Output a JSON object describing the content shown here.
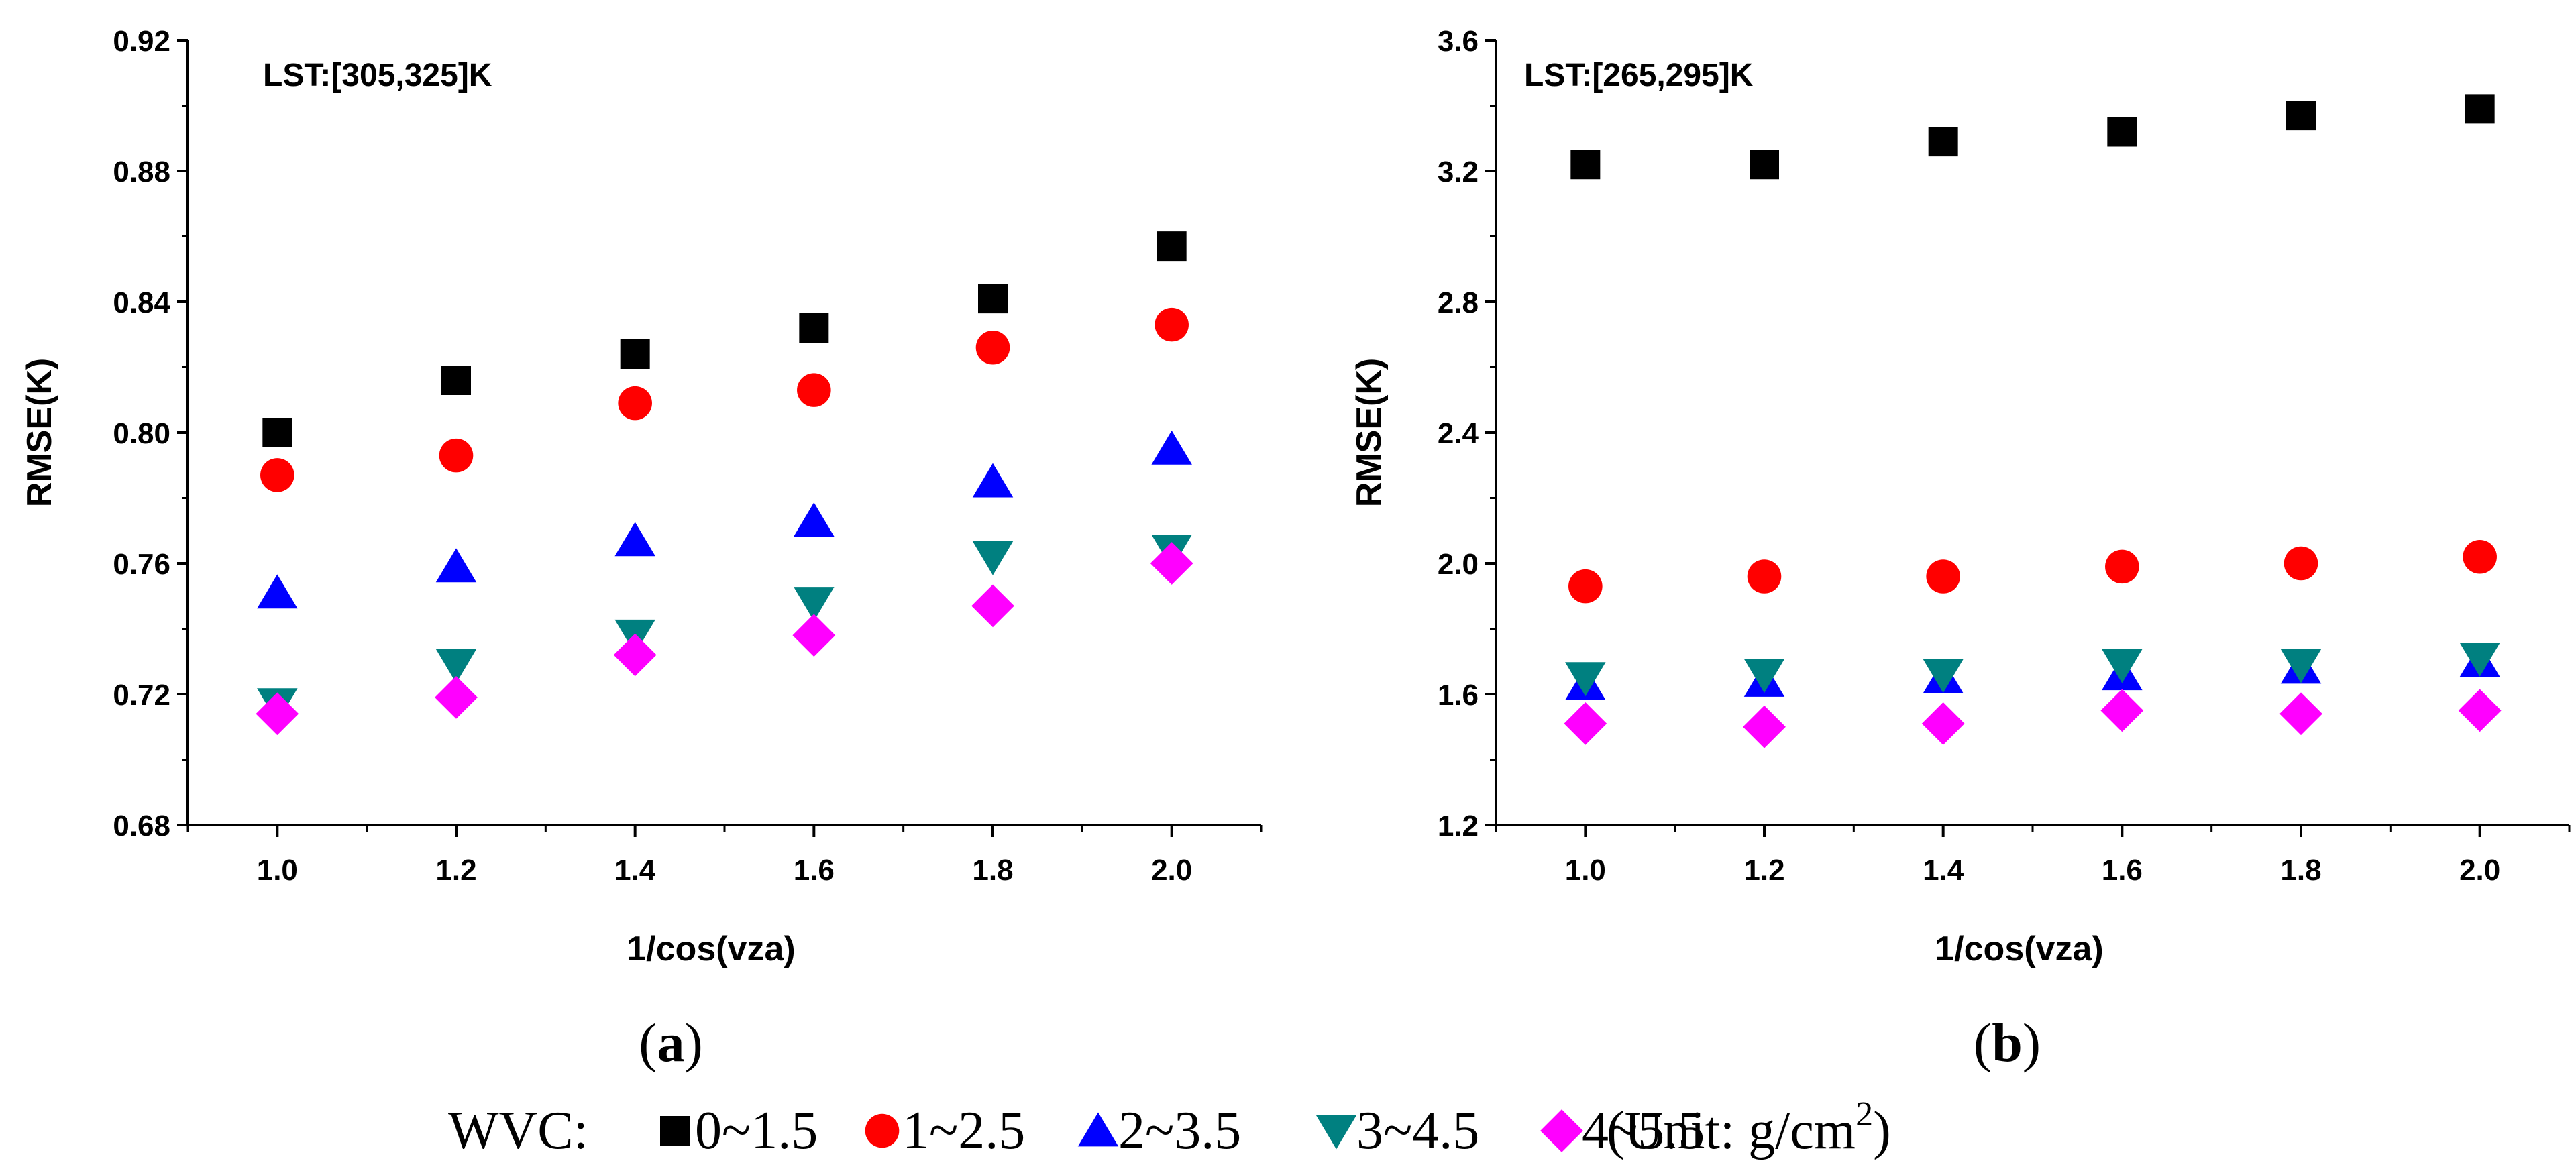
{
  "chart_data": [
    {
      "type": "scatter",
      "panel_label_open": "(",
      "panel_label": "a",
      "panel_label_close": ")",
      "annotation": "LST:[305,325]K",
      "xlabel": "1/cos(vza)",
      "ylabel": "RMSE(K)",
      "xlim": [
        0.9,
        2.1
      ],
      "ylim": [
        0.68,
        0.92
      ],
      "x_ticks": [
        "1.0",
        "1.2",
        "1.4",
        "1.6",
        "1.8",
        "2.0"
      ],
      "y_ticks": [
        "0.68",
        "0.72",
        "0.76",
        "0.80",
        "0.84",
        "0.88",
        "0.92"
      ],
      "x": [
        1.0,
        1.2,
        1.4,
        1.6,
        1.8,
        2.0
      ],
      "grid": false,
      "series": [
        {
          "values": [
            0.8,
            0.816,
            0.824,
            0.832,
            0.841,
            0.857
          ]
        },
        {
          "values": [
            0.787,
            0.793,
            0.809,
            0.813,
            0.826,
            0.833
          ]
        },
        {
          "values": [
            0.751,
            0.759,
            0.767,
            0.773,
            0.785,
            0.795
          ]
        },
        {
          "values": [
            0.717,
            0.729,
            0.738,
            0.748,
            0.762,
            0.764
          ]
        },
        {
          "values": [
            0.714,
            0.719,
            0.732,
            0.738,
            0.747,
            0.76
          ]
        }
      ]
    },
    {
      "type": "scatter",
      "panel_label_open": "(",
      "panel_label": "b",
      "panel_label_close": ")",
      "annotation": "LST:[265,295]K",
      "xlabel": "1/cos(vza)",
      "ylabel": "RMSE(K)",
      "xlim": [
        0.9,
        2.1
      ],
      "ylim": [
        1.2,
        3.6
      ],
      "x_ticks": [
        "1.0",
        "1.2",
        "1.4",
        "1.6",
        "1.8",
        "2.0"
      ],
      "y_ticks": [
        "1.2",
        "1.6",
        "2.0",
        "2.4",
        "2.8",
        "3.2",
        "3.6"
      ],
      "x": [
        1.0,
        1.2,
        1.4,
        1.6,
        1.8,
        2.0
      ],
      "grid": false,
      "series": [
        {
          "values": [
            3.22,
            3.22,
            3.29,
            3.32,
            3.37,
            3.39
          ]
        },
        {
          "values": [
            1.93,
            1.96,
            1.96,
            1.99,
            2.0,
            2.02
          ]
        },
        {
          "values": [
            1.63,
            1.64,
            1.65,
            1.66,
            1.68,
            1.7
          ]
        },
        {
          "values": [
            1.65,
            1.66,
            1.66,
            1.69,
            1.69,
            1.71
          ]
        },
        {
          "values": [
            1.51,
            1.5,
            1.51,
            1.55,
            1.54,
            1.55
          ]
        }
      ]
    }
  ],
  "legend": {
    "prefix": "WVC:",
    "items": [
      {
        "label": "0~1.5",
        "marker": "square",
        "color": "#000000"
      },
      {
        "label": "1~2.5",
        "marker": "circle",
        "color": "#ff0000"
      },
      {
        "label": "2~3.5",
        "marker": "triangle-up",
        "color": "#0000ff"
      },
      {
        "label": "3~4.5",
        "marker": "triangle-down",
        "color": "#008080"
      },
      {
        "label": "4~5.5",
        "marker": "diamond",
        "color": "#ff00ff"
      }
    ],
    "unit_text": "(Unit: g/cm",
    "unit_sup": "2",
    "unit_close": ")"
  }
}
